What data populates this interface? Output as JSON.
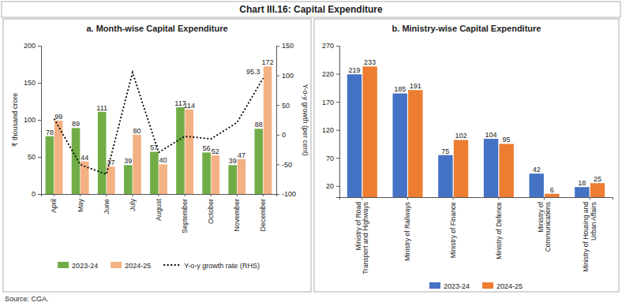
{
  "title": "Chart III.16: Capital Expenditure",
  "source": "Source: CGA.",
  "chart_data": [
    {
      "type": "bar",
      "title": "a. Month-wise Capital Expenditure",
      "categories": [
        "April",
        "May",
        "June",
        "July",
        "August",
        "September",
        "October",
        "November",
        "December"
      ],
      "series": [
        {
          "name": "2023-24",
          "color": "#70ad47",
          "values": [
            78,
            89,
            111,
            39,
            57,
            117,
            56,
            39,
            88
          ]
        },
        {
          "name": "2024-25",
          "color": "#f4b183",
          "values": [
            99,
            44,
            37,
            80,
            40,
            114,
            52,
            47,
            172
          ]
        },
        {
          "name": "Y-o-y growth rate (RHS)",
          "type": "line",
          "axis": "y2",
          "color": "#000000",
          "line_style": "dotted",
          "values": [
            26.9,
            -50.6,
            -66.7,
            105.1,
            -29.8,
            -2.6,
            -7.1,
            20.5,
            95.3
          ],
          "value_labels": [
            null,
            null,
            null,
            null,
            null,
            null,
            null,
            null,
            "95.3"
          ]
        }
      ],
      "y_label": "₹ thousand crore",
      "y2_label": "Y-o-y growth (per cent)",
      "ylim": [
        0,
        200
      ],
      "yticks": [
        0,
        50,
        100,
        150,
        200
      ],
      "y2lim": [
        -100,
        150
      ],
      "y2ticks": [
        -100,
        -50,
        0,
        50,
        100,
        150
      ],
      "data_labels": true,
      "grid": false,
      "legend": "bottom"
    },
    {
      "type": "bar",
      "title": "b. Ministry-wise Capital Expenditure",
      "categories": [
        "Ministry of Road Transport and Highways",
        "Ministry of Railways",
        "Ministry of Finance",
        "Ministry of Defence",
        "Ministry of Communications",
        "Ministry of Housing and Urban Affairs"
      ],
      "series": [
        {
          "name": "2023-24",
          "color": "#4472c4",
          "values": [
            219,
            185,
            75,
            104,
            42,
            18
          ]
        },
        {
          "name": "2024-25",
          "color": "#ed7d31",
          "values": [
            233,
            191,
            102,
            95,
            6,
            25
          ]
        }
      ],
      "ylim": [
        0,
        270
      ],
      "yticks": [
        20,
        70,
        120,
        170,
        220,
        270
      ],
      "data_labels": true,
      "grid": false,
      "legend": "bottom"
    }
  ]
}
